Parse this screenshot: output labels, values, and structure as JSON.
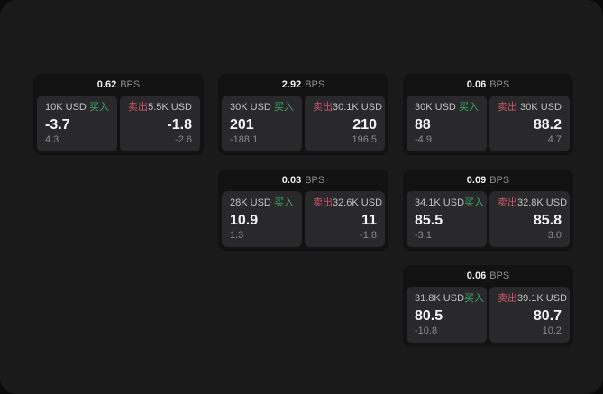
{
  "panel": {
    "background": "#1a1a1b",
    "outer_background": "#0a0a0b"
  },
  "labels": {
    "bps": "BPS",
    "buy": "买入",
    "sell": "卖出"
  },
  "colors": {
    "buy": "#40a868",
    "sell": "#c9566b",
    "card": "#121213",
    "tile": "#29292b",
    "value_text": "#f5f5f6",
    "muted_text": "#8a8a8c"
  },
  "cards": [
    {
      "bps": "0.62",
      "col": 1,
      "row": 1,
      "buy": {
        "size": "10K USD",
        "value": "-3.7",
        "sub": "4.3"
      },
      "sell": {
        "size": "5.5K USD",
        "value": "-1.8",
        "sub": "-2.6"
      }
    },
    {
      "bps": "2.92",
      "col": 2,
      "row": 1,
      "buy": {
        "size": "30K USD",
        "value": "201",
        "sub": "-188.1"
      },
      "sell": {
        "size": "30.1K USD",
        "value": "210",
        "sub": "196.5"
      }
    },
    {
      "bps": "0.06",
      "col": 3,
      "row": 1,
      "buy": {
        "size": "30K USD",
        "value": "88",
        "sub": "-4.9"
      },
      "sell": {
        "size": "30K USD",
        "value": "88.2",
        "sub": "4.7"
      }
    },
    {
      "bps": "0.03",
      "col": 2,
      "row": 2,
      "buy": {
        "size": "28K USD",
        "value": "10.9",
        "sub": "1.3"
      },
      "sell": {
        "size": "32.6K USD",
        "value": "11",
        "sub": "-1.8"
      }
    },
    {
      "bps": "0.09",
      "col": 3,
      "row": 2,
      "buy": {
        "size": "34.1K USD",
        "value": "85.5",
        "sub": "-3.1"
      },
      "sell": {
        "size": "32.8K USD",
        "value": "85.8",
        "sub": "3.0"
      }
    },
    {
      "bps": "0.06",
      "col": 3,
      "row": 3,
      "buy": {
        "size": "31.8K USD",
        "value": "80.5",
        "sub": "-10.8"
      },
      "sell": {
        "size": "39.1K USD",
        "value": "80.7",
        "sub": "10.2"
      }
    }
  ]
}
